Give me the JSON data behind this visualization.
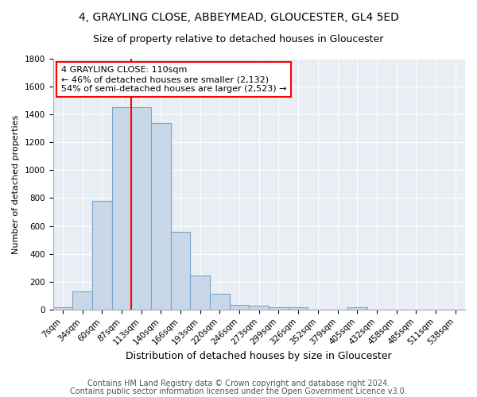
{
  "title": "4, GRAYLING CLOSE, ABBEYMEAD, GLOUCESTER, GL4 5ED",
  "subtitle": "Size of property relative to detached houses in Gloucester",
  "xlabel": "Distribution of detached houses by size in Gloucester",
  "ylabel": "Number of detached properties",
  "categories": [
    "7sqm",
    "34sqm",
    "60sqm",
    "87sqm",
    "113sqm",
    "140sqm",
    "166sqm",
    "193sqm",
    "220sqm",
    "246sqm",
    "273sqm",
    "299sqm",
    "326sqm",
    "352sqm",
    "379sqm",
    "405sqm",
    "432sqm",
    "458sqm",
    "485sqm",
    "511sqm",
    "538sqm"
  ],
  "values": [
    15,
    130,
    780,
    1450,
    1450,
    1340,
    555,
    245,
    115,
    32,
    30,
    15,
    15,
    0,
    0,
    18,
    0,
    0,
    0,
    0,
    0
  ],
  "bar_color": "#c8d8e8",
  "bar_edge_color": "#7aa4c8",
  "bar_width": 1.0,
  "property_line_index": 4,
  "property_line_color": "red",
  "annotation_line1": "4 GRAYLING CLOSE: 110sqm",
  "annotation_line2": "← 46% of detached houses are smaller (2,132)",
  "annotation_line3": "54% of semi-detached houses are larger (2,523) →",
  "annotation_box_color": "white",
  "annotation_box_edge_color": "red",
  "ylim": [
    0,
    1800
  ],
  "yticks": [
    0,
    200,
    400,
    600,
    800,
    1000,
    1200,
    1400,
    1600,
    1800
  ],
  "bg_color": "#e8eef4",
  "footer_line1": "Contains HM Land Registry data © Crown copyright and database right 2024.",
  "footer_line2": "Contains public sector information licensed under the Open Government Licence v3.0.",
  "title_fontsize": 10,
  "subtitle_fontsize": 9,
  "xlabel_fontsize": 9,
  "ylabel_fontsize": 8,
  "annotation_fontsize": 8,
  "footer_fontsize": 7,
  "tick_fontsize": 7.5
}
